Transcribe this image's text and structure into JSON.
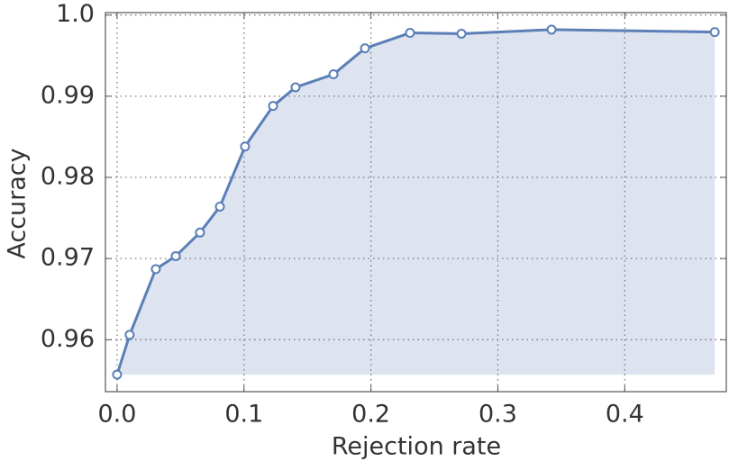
{
  "chart_data": {
    "type": "area",
    "x_label": "Rejection rate",
    "y_label": "Accuracy",
    "x": [
      0.0,
      0.0099,
      0.0305,
      0.0462,
      0.0653,
      0.081,
      0.1008,
      0.1229,
      0.1406,
      0.1705,
      0.1953,
      0.2308,
      0.2713,
      0.3423,
      0.4709
    ],
    "values": [
      0.9557,
      0.9606,
      0.9687,
      0.9703,
      0.9732,
      0.9764,
      0.9838,
      0.9888,
      0.9911,
      0.9927,
      0.9959,
      0.9978,
      0.9977,
      0.9982,
      0.9979
    ],
    "color": "#5b7fb6",
    "fill_color": "#dde4f0",
    "xlim": [
      -0.0092,
      0.48
    ],
    "ylim": [
      0.9536,
      1.0003
    ],
    "xticks": [
      {
        "value": 0,
        "label": "0.0"
      },
      0.1,
      0.2,
      0.3,
      0.4
    ],
    "yticks": [
      0.96,
      0.97,
      0.98,
      0.99,
      {
        "value": 1,
        "label": "1.0"
      }
    ],
    "grid": true
  }
}
